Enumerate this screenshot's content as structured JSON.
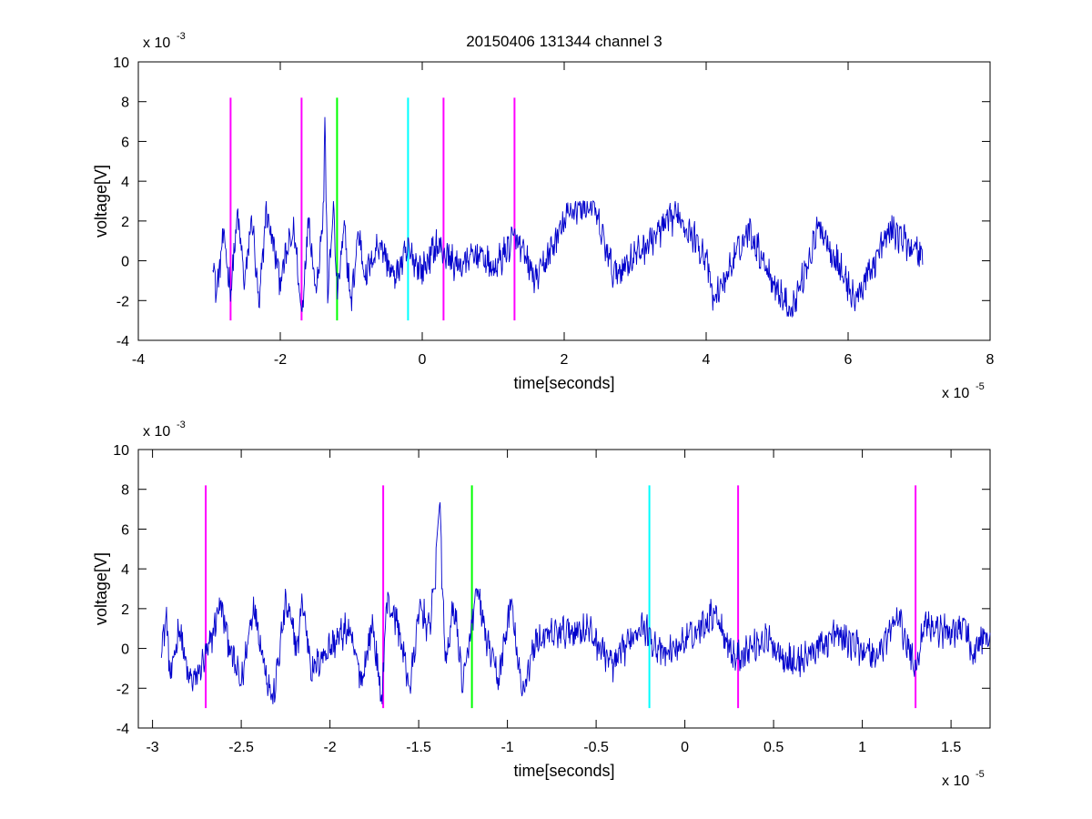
{
  "figure": {
    "title": "20150406 131344 channel 3"
  },
  "chart_data": [
    {
      "type": "line",
      "title": "20150406 131344 channel 3",
      "xlabel": "time[seconds]",
      "ylabel": "voltage[V]",
      "x_exponent_label": "x 10",
      "x_exponent": "-5",
      "y_exponent_label": "x 10",
      "y_exponent": "-3",
      "xlim": [
        -4,
        8
      ],
      "ylim": [
        -4,
        10
      ],
      "xticks": [
        -4,
        -2,
        0,
        2,
        4,
        6,
        8
      ],
      "xtick_labels": [
        "-4",
        "-2",
        "0",
        "2",
        "4",
        "6",
        "8"
      ],
      "yticks": [
        -4,
        -2,
        0,
        2,
        4,
        6,
        8,
        10
      ],
      "ytick_labels": [
        "-4",
        "-2",
        "0",
        "2",
        "4",
        "6",
        "8",
        "10"
      ],
      "grid": false,
      "series": [
        {
          "color": "#0000cc",
          "x_range": [
            -2.95,
            7.05
          ],
          "points": [
            [
              -2.95,
              0.2
            ],
            [
              -2.9,
              -1.7
            ],
            [
              -2.8,
              1.3
            ],
            [
              -2.7,
              -1.5
            ],
            [
              -2.6,
              2.3
            ],
            [
              -2.5,
              -1.2
            ],
            [
              -2.4,
              2.3
            ],
            [
              -2.3,
              -2.5
            ],
            [
              -2.2,
              2.6
            ],
            [
              -2.1,
              0.8
            ],
            [
              -2.0,
              -1.0
            ],
            [
              -1.9,
              0.5
            ],
            [
              -1.8,
              1.5
            ],
            [
              -1.7,
              -2.8
            ],
            [
              -1.6,
              2.3
            ],
            [
              -1.5,
              -1.5
            ],
            [
              -1.4,
              2.0
            ],
            [
              -1.37,
              7.5
            ],
            [
              -1.33,
              -1.8
            ],
            [
              -1.25,
              2.9
            ],
            [
              -1.2,
              -1.8
            ],
            [
              -1.1,
              1.6
            ],
            [
              -1.0,
              -2.2
            ],
            [
              -0.9,
              1.5
            ],
            [
              -0.8,
              -0.8
            ],
            [
              -0.6,
              1.0
            ],
            [
              -0.4,
              -0.9
            ],
            [
              -0.2,
              0.5
            ],
            [
              0.0,
              -0.5
            ],
            [
              0.2,
              0.8
            ],
            [
              0.5,
              -0.3
            ],
            [
              0.8,
              0.4
            ],
            [
              1.0,
              -0.5
            ],
            [
              1.3,
              1.2
            ],
            [
              1.6,
              -1.0
            ],
            [
              2.1,
              2.6
            ],
            [
              2.4,
              2.8
            ],
            [
              2.7,
              -0.7
            ],
            [
              3.1,
              0.6
            ],
            [
              3.6,
              2.4
            ],
            [
              4.0,
              0.2
            ],
            [
              4.1,
              -2.1
            ],
            [
              4.6,
              1.6
            ],
            [
              5.0,
              -1.4
            ],
            [
              5.2,
              -2.6
            ],
            [
              5.6,
              1.8
            ],
            [
              6.1,
              -2.0
            ],
            [
              6.6,
              1.6
            ],
            [
              7.0,
              0.4
            ]
          ]
        }
      ],
      "vlines": [
        {
          "x": -2.7,
          "color": "#ff00ff"
        },
        {
          "x": -1.7,
          "color": "#ff00ff"
        },
        {
          "x": -1.2,
          "color": "#00ff00"
        },
        {
          "x": -0.2,
          "color": "#00ffff"
        },
        {
          "x": 0.3,
          "color": "#ff00ff"
        },
        {
          "x": 1.3,
          "color": "#ff00ff"
        }
      ],
      "vline_range": [
        -3,
        8.2
      ]
    },
    {
      "type": "line",
      "xlabel": "time[seconds]",
      "ylabel": "voltage[V]",
      "x_exponent_label": "x 10",
      "x_exponent": "-5",
      "y_exponent_label": "x 10",
      "y_exponent": "-3",
      "xlim": [
        -3.08,
        1.72
      ],
      "ylim": [
        -4,
        10
      ],
      "xticks": [
        -3,
        -2.5,
        -2,
        -1.5,
        -1,
        -0.5,
        0,
        0.5,
        1,
        1.5
      ],
      "xtick_labels": [
        "-3",
        "-2.5",
        "-2",
        "-1.5",
        "-1",
        "-0.5",
        "0",
        "0.5",
        "1",
        "1.5"
      ],
      "yticks": [
        -4,
        -2,
        0,
        2,
        4,
        6,
        8,
        10
      ],
      "ytick_labels": [
        "-4",
        "-2",
        "0",
        "2",
        "4",
        "6",
        "8",
        "10"
      ],
      "grid": false,
      "series": [
        {
          "color": "#0000cc",
          "x_range": [
            -2.95,
            1.72
          ],
          "points": [
            [
              -2.95,
              0.2
            ],
            [
              -2.92,
              1.5
            ],
            [
              -2.9,
              -1.7
            ],
            [
              -2.85,
              1.2
            ],
            [
              -2.8,
              -1.5
            ],
            [
              -2.76,
              -1.6
            ],
            [
              -2.68,
              0.0
            ],
            [
              -2.62,
              2.3
            ],
            [
              -2.55,
              -0.5
            ],
            [
              -2.5,
              -1.8
            ],
            [
              -2.43,
              2.3
            ],
            [
              -2.36,
              -1.2
            ],
            [
              -2.32,
              -2.7
            ],
            [
              -2.25,
              2.3
            ],
            [
              -2.18,
              -0.1
            ],
            [
              -2.16,
              2.6
            ],
            [
              -2.1,
              -1.2
            ],
            [
              -2.04,
              -0.3
            ],
            [
              -1.9,
              1.0
            ],
            [
              -1.82,
              -1.6
            ],
            [
              -1.76,
              1.3
            ],
            [
              -1.71,
              -2.8
            ],
            [
              -1.68,
              2.4
            ],
            [
              -1.62,
              1.3
            ],
            [
              -1.55,
              -2.0
            ],
            [
              -1.49,
              2.2
            ],
            [
              -1.44,
              0.8
            ],
            [
              -1.38,
              7.5
            ],
            [
              -1.35,
              -0.8
            ],
            [
              -1.3,
              2.2
            ],
            [
              -1.25,
              -1.9
            ],
            [
              -1.17,
              3.0
            ],
            [
              -1.12,
              0.5
            ],
            [
              -1.05,
              -1.6
            ],
            [
              -0.98,
              2.4
            ],
            [
              -0.92,
              -2.3
            ],
            [
              -0.84,
              0.4
            ],
            [
              -0.7,
              0.8
            ],
            [
              -0.55,
              1.0
            ],
            [
              -0.4,
              -0.9
            ],
            [
              -0.25,
              1.3
            ],
            [
              -0.12,
              -0.4
            ],
            [
              0.05,
              0.7
            ],
            [
              0.17,
              1.9
            ],
            [
              0.28,
              -0.5
            ],
            [
              0.45,
              0.5
            ],
            [
              0.62,
              -0.8
            ],
            [
              0.85,
              0.7
            ],
            [
              1.08,
              -0.4
            ],
            [
              1.2,
              1.6
            ],
            [
              1.3,
              -1.0
            ],
            [
              1.35,
              1.4
            ],
            [
              1.46,
              0.8
            ],
            [
              1.58,
              1.1
            ],
            [
              1.62,
              -0.4
            ],
            [
              1.68,
              0.6
            ],
            [
              1.72,
              0.4
            ]
          ]
        }
      ],
      "vlines": [
        {
          "x": -2.7,
          "color": "#ff00ff"
        },
        {
          "x": -1.7,
          "color": "#ff00ff"
        },
        {
          "x": -1.2,
          "color": "#00ff00"
        },
        {
          "x": -0.2,
          "color": "#00ffff"
        },
        {
          "x": 0.3,
          "color": "#ff00ff"
        },
        {
          "x": 1.3,
          "color": "#ff00ff"
        }
      ],
      "vline_range": [
        -3,
        8.2
      ]
    }
  ]
}
